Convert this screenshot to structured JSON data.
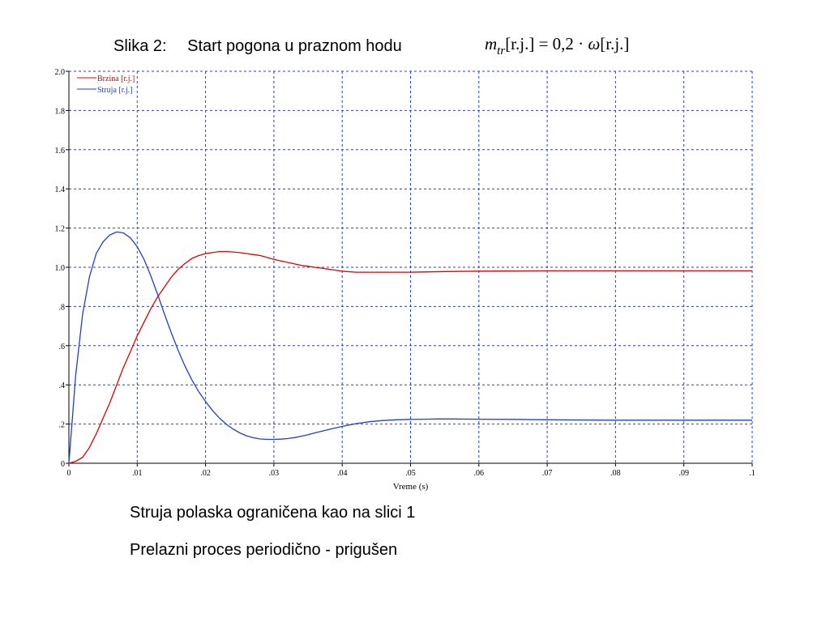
{
  "slide": {
    "title_label": "Slika 2:",
    "title_text": "Start pogona u praznom hodu",
    "formula": {
      "var": "m",
      "sub": "tr",
      "unit1": "[r.j.]",
      "eq": " = 0,2 · ",
      "omega": "ω",
      "unit2": "[r.j.]"
    },
    "caption_1": "Struja polaska ograničena kao na slici 1",
    "caption_2": "Prelazni proces periodično - prigušen"
  },
  "chart_data": {
    "type": "line",
    "title": "",
    "xlabel": "Vreme (s)",
    "ylabel": "",
    "xlim": [
      0,
      0.1
    ],
    "ylim": [
      0,
      2.0
    ],
    "grid": true,
    "legend_position": "top-left",
    "x_ticks": [
      0,
      0.01,
      0.02,
      0.03,
      0.04,
      0.05,
      0.06,
      0.07,
      0.08,
      0.09,
      0.1
    ],
    "x_tick_labels": [
      "0",
      ".01",
      ".02",
      ".03",
      ".04",
      ".05",
      ".06",
      ".07",
      ".08",
      ".09",
      ".1"
    ],
    "y_ticks": [
      0,
      0.2,
      0.4,
      0.6,
      0.8,
      1.0,
      1.2,
      1.4,
      1.6,
      1.8,
      2.0
    ],
    "y_tick_labels": [
      "0",
      ".2",
      ".4",
      ".6",
      ".8",
      "1.0",
      "1.2",
      "1.4",
      "1.6",
      "1.8",
      "2.0"
    ],
    "series": [
      {
        "name": "Brzina [r.j.]",
        "color": "#e00000",
        "x": [
          0,
          0.001,
          0.002,
          0.003,
          0.004,
          0.005,
          0.006,
          0.007,
          0.008,
          0.009,
          0.01,
          0.011,
          0.012,
          0.013,
          0.014,
          0.015,
          0.016,
          0.017,
          0.018,
          0.019,
          0.02,
          0.021,
          0.022,
          0.023,
          0.024,
          0.025,
          0.026,
          0.027,
          0.028,
          0.029,
          0.03,
          0.032,
          0.034,
          0.036,
          0.038,
          0.04,
          0.042,
          0.044,
          0.046,
          0.048,
          0.05,
          0.055,
          0.06,
          0.07,
          0.08,
          0.09,
          0.1
        ],
        "values": [
          0,
          0.01,
          0.03,
          0.08,
          0.15,
          0.23,
          0.31,
          0.4,
          0.49,
          0.57,
          0.65,
          0.72,
          0.79,
          0.85,
          0.9,
          0.95,
          0.99,
          1.02,
          1.045,
          1.06,
          1.07,
          1.075,
          1.08,
          1.08,
          1.078,
          1.075,
          1.07,
          1.065,
          1.06,
          1.05,
          1.04,
          1.025,
          1.01,
          1.0,
          0.99,
          0.98,
          0.975,
          0.975,
          0.975,
          0.975,
          0.975,
          0.978,
          0.98,
          0.982,
          0.982,
          0.982,
          0.982
        ]
      },
      {
        "name": "Struja [r.j.]",
        "color": "#1f3fcf",
        "x": [
          0,
          0.001,
          0.002,
          0.003,
          0.004,
          0.005,
          0.006,
          0.007,
          0.008,
          0.009,
          0.01,
          0.011,
          0.012,
          0.013,
          0.014,
          0.015,
          0.016,
          0.017,
          0.018,
          0.019,
          0.02,
          0.021,
          0.022,
          0.023,
          0.024,
          0.025,
          0.026,
          0.027,
          0.028,
          0.029,
          0.03,
          0.031,
          0.032,
          0.033,
          0.034,
          0.035,
          0.036,
          0.038,
          0.04,
          0.042,
          0.044,
          0.046,
          0.048,
          0.05,
          0.052,
          0.054,
          0.056,
          0.06,
          0.065,
          0.07,
          0.08,
          0.09,
          0.1
        ],
        "values": [
          0,
          0.45,
          0.76,
          0.95,
          1.07,
          1.13,
          1.165,
          1.18,
          1.175,
          1.15,
          1.105,
          1.04,
          0.955,
          0.86,
          0.76,
          0.665,
          0.575,
          0.495,
          0.425,
          0.365,
          0.315,
          0.27,
          0.232,
          0.2,
          0.175,
          0.155,
          0.14,
          0.13,
          0.124,
          0.122,
          0.122,
          0.123,
          0.126,
          0.131,
          0.138,
          0.146,
          0.155,
          0.172,
          0.188,
          0.202,
          0.212,
          0.218,
          0.222,
          0.224,
          0.225,
          0.226,
          0.226,
          0.225,
          0.224,
          0.222,
          0.22,
          0.22,
          0.22
        ]
      }
    ]
  }
}
